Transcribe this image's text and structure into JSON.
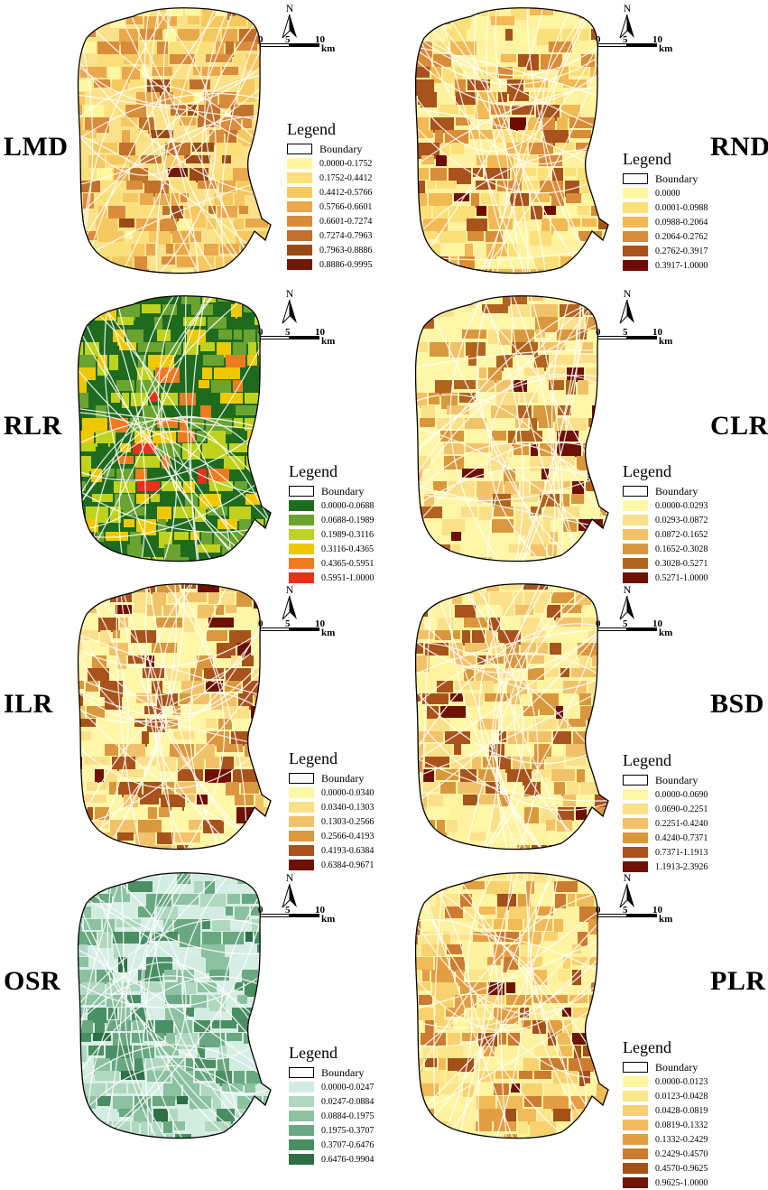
{
  "scale": {
    "t0": "0",
    "t5": "5",
    "t10": "10",
    "unit": "km"
  },
  "north_label": "N",
  "legend_title": "Legend",
  "boundary_label": "Boundary",
  "panels": [
    {
      "label": "LMD",
      "ranges": [
        "0.0000-0.1752",
        "0.1752-0.4412",
        "0.4412-0.5766",
        "0.5766-0.6601",
        "0.6601-0.7274",
        "0.7274-0.7963",
        "0.7963-0.8886",
        "0.8886-0.9995"
      ],
      "colors": [
        "#fff7a0",
        "#fbe07a",
        "#f5c860",
        "#eaa84c",
        "#d98c3c",
        "#c0712c",
        "#9a4a16",
        "#6e1a06"
      ],
      "base": "#fbe28a",
      "heavy": 0.55
    },
    {
      "label": "RND",
      "ranges": [
        "0.0000",
        "0.0001-0.0988",
        "0.0988-0.2064",
        "0.2064-0.2762",
        "0.2762-0.3917",
        "0.3917-1.0000"
      ],
      "colors": [
        "#fff7a0",
        "#fbdf78",
        "#f2b955",
        "#d98c3a",
        "#a8521c",
        "#6e0c04"
      ],
      "base": "#fff2a0",
      "heavy": 0.4
    },
    {
      "label": "RLR",
      "ranges": [
        "0.0000-0.0688",
        "0.0688-0.1989",
        "0.1989-0.3116",
        "0.3116-0.4365",
        "0.4365-0.5951",
        "0.5951-1.0000"
      ],
      "colors": [
        "#1e6b1e",
        "#6aa330",
        "#bfd21e",
        "#f0c800",
        "#f07a20",
        "#e8301a"
      ],
      "base": "#1e6b1e",
      "heavy": 0.7
    },
    {
      "label": "CLR",
      "ranges": [
        "0.0000-0.0293",
        "0.0293-0.0872",
        "0.0872-0.1652",
        "0.1652-0.3028",
        "0.3028-0.5271",
        "0.5271-1.0000"
      ],
      "colors": [
        "#fff7a8",
        "#fbe08a",
        "#f2c26a",
        "#d9983e",
        "#b0641e",
        "#6e1004"
      ],
      "base": "#fff6a8",
      "heavy": 0.25
    },
    {
      "label": "ILR",
      "ranges": [
        "0.0000-0.0340",
        "0.0340-0.1303",
        "0.1303-0.2566",
        "0.2566-0.4193",
        "0.4193-0.6384",
        "0.6384-0.9671"
      ],
      "colors": [
        "#fff7a8",
        "#fbe08a",
        "#f2c26a",
        "#d9983e",
        "#a8521c",
        "#6e1004"
      ],
      "base": "#fff6a8",
      "heavy": 0.2
    },
    {
      "label": "BSD",
      "ranges": [
        "0.0000-0.0690",
        "0.0690-0.2251",
        "0.2251-0.4240",
        "0.4240-0.7371",
        "0.7371-1.1913",
        "1.1913-2.3926"
      ],
      "colors": [
        "#fff7a8",
        "#fbe08a",
        "#f2c26a",
        "#d9983e",
        "#a8521c",
        "#6e1004"
      ],
      "base": "#fff3a0",
      "heavy": 0.35
    },
    {
      "label": "OSR",
      "ranges": [
        "0.0000-0.0247",
        "0.0247-0.0884",
        "0.0884-0.1975",
        "0.1975-0.3707",
        "0.3707-0.6476",
        "0.6476-0.9904"
      ],
      "colors": [
        "#d2ece2",
        "#b0d8c0",
        "#8cc2a2",
        "#6aa882",
        "#4a8e64",
        "#2e7046"
      ],
      "base": "#d6eee4",
      "heavy": 0.3
    },
    {
      "label": "PLR",
      "ranges": [
        "0.0000-0.0123",
        "0.0123-0.0428",
        "0.0428-0.0819",
        "0.0819-0.1332",
        "0.1332-0.2429",
        "0.2429-0.4570",
        "0.4570-0.9625",
        "0.9625-1.0000"
      ],
      "colors": [
        "#fff7a0",
        "#fbe68a",
        "#f7d26e",
        "#f0bb58",
        "#e39e44",
        "#cc7c30",
        "#a4501a",
        "#6e1404"
      ],
      "base": "#fff2a0",
      "heavy": 0.35
    }
  ]
}
